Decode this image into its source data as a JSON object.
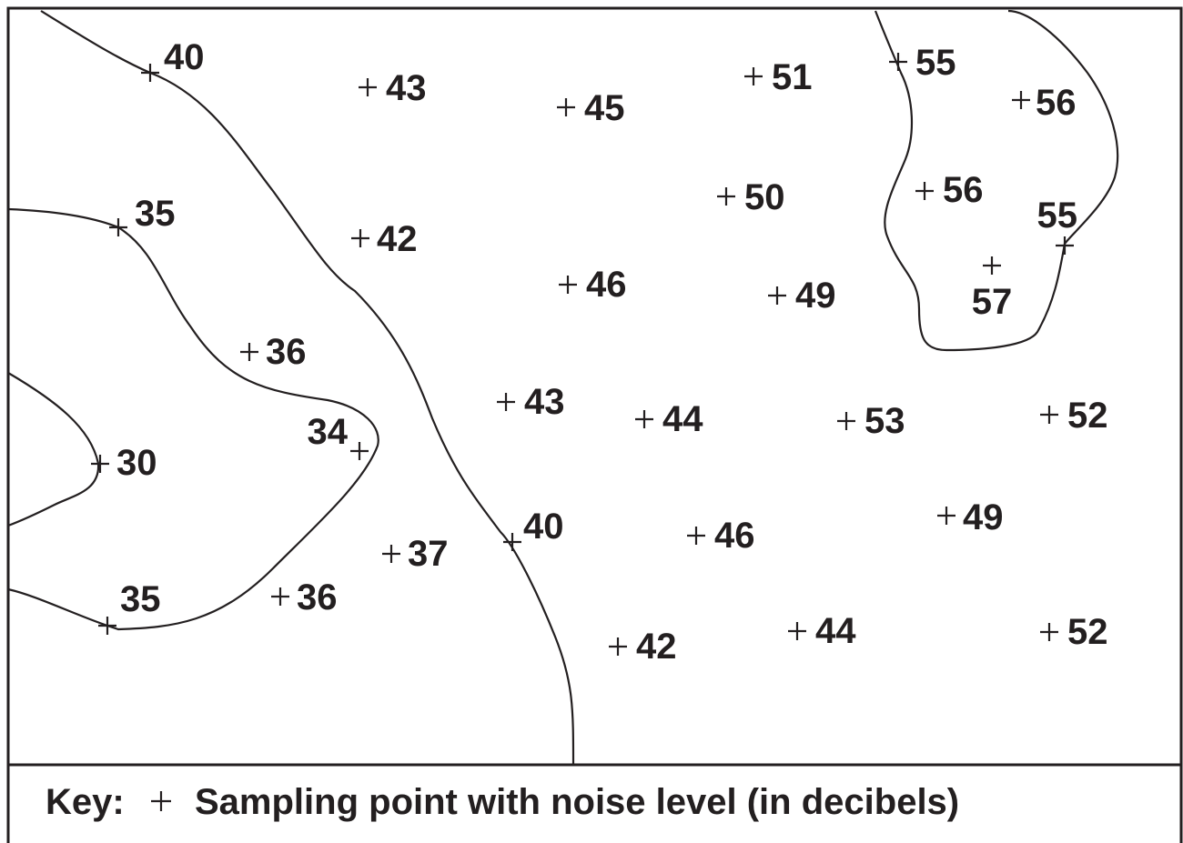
{
  "map": {
    "points": [
      {
        "value": "40"
      },
      {
        "value": "43"
      },
      {
        "value": "45"
      },
      {
        "value": "51"
      },
      {
        "value": "55"
      },
      {
        "value": "56"
      },
      {
        "value": "35"
      },
      {
        "value": "42"
      },
      {
        "value": "50"
      },
      {
        "value": "56"
      },
      {
        "value": "55"
      },
      {
        "value": "46"
      },
      {
        "value": "49"
      },
      {
        "value": "57"
      },
      {
        "value": "36"
      },
      {
        "value": "43"
      },
      {
        "value": "44"
      },
      {
        "value": "53"
      },
      {
        "value": "52"
      },
      {
        "value": "34"
      },
      {
        "value": "30"
      },
      {
        "value": "40"
      },
      {
        "value": "46"
      },
      {
        "value": "49"
      },
      {
        "value": "37"
      },
      {
        "value": "35"
      },
      {
        "value": "36"
      },
      {
        "value": "42"
      },
      {
        "value": "44"
      },
      {
        "value": "52"
      }
    ],
    "key_label": "Key:",
    "key_symbol": "+",
    "key_text": "Sampling point with noise level (in decibels)"
  }
}
